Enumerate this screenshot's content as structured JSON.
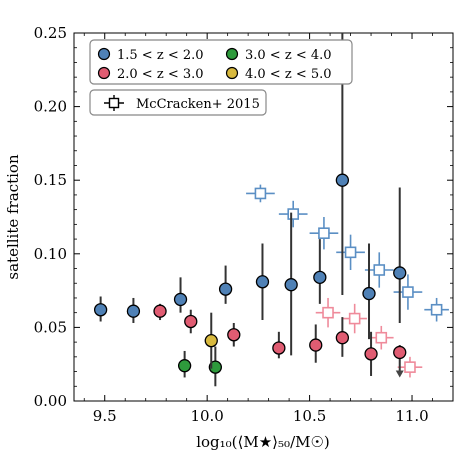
{
  "chart_data": {
    "type": "scatter",
    "xlabel": "log₁₀(⟨M★⟩₅₀/M☉)",
    "ylabel": "satellite fraction",
    "xlim": [
      9.35,
      11.2
    ],
    "ylim": [
      0.0,
      0.25
    ],
    "xticks": [
      "9.5",
      "10.0",
      "10.5",
      "11.0"
    ],
    "xtick_values": [
      9.5,
      10.0,
      10.5,
      11.0
    ],
    "yticks": [
      "0.00",
      "0.05",
      "0.10",
      "0.15",
      "0.20",
      "0.25"
    ],
    "ytick_values": [
      0.0,
      0.05,
      0.1,
      0.15,
      0.2,
      0.25
    ],
    "grid": false,
    "legend_position": "top-left",
    "series": [
      {
        "name": "1.5 < z < 2.0",
        "color": "#4f81b6",
        "marker": "circle",
        "points": [
          {
            "x": 9.48,
            "y": 0.062,
            "ylo": 0.054,
            "yhi": 0.071
          },
          {
            "x": 9.64,
            "y": 0.061,
            "ylo": 0.053,
            "yhi": 0.07
          },
          {
            "x": 9.87,
            "y": 0.069,
            "ylo": 0.06,
            "yhi": 0.084
          },
          {
            "x": 10.09,
            "y": 0.076,
            "ylo": 0.066,
            "yhi": 0.092
          },
          {
            "x": 10.27,
            "y": 0.081,
            "ylo": 0.055,
            "yhi": 0.107
          },
          {
            "x": 10.41,
            "y": 0.079,
            "ylo": 0.031,
            "yhi": 0.128
          },
          {
            "x": 10.55,
            "y": 0.084,
            "ylo": 0.066,
            "yhi": 0.11
          },
          {
            "x": 10.66,
            "y": 0.15,
            "ylo": 0.072,
            "yhi": 0.25
          },
          {
            "x": 10.79,
            "y": 0.073,
            "ylo": 0.042,
            "yhi": 0.107
          },
          {
            "x": 10.94,
            "y": 0.087,
            "ylo": 0.053,
            "yhi": 0.145
          }
        ]
      },
      {
        "name": "2.0 < z < 3.0",
        "color": "#e05c72",
        "marker": "circle",
        "points": [
          {
            "x": 9.77,
            "y": 0.061,
            "ylo": 0.055,
            "yhi": 0.066
          },
          {
            "x": 9.92,
            "y": 0.054,
            "ylo": 0.046,
            "yhi": 0.062
          },
          {
            "x": 10.13,
            "y": 0.045,
            "ylo": 0.037,
            "yhi": 0.053
          },
          {
            "x": 10.35,
            "y": 0.036,
            "ylo": 0.029,
            "yhi": 0.047
          },
          {
            "x": 10.53,
            "y": 0.038,
            "ylo": 0.026,
            "yhi": 0.052
          },
          {
            "x": 10.66,
            "y": 0.043,
            "ylo": 0.03,
            "yhi": 0.057
          },
          {
            "x": 10.8,
            "y": 0.032,
            "ylo": 0.017,
            "yhi": 0.047
          },
          {
            "x": 10.94,
            "y": 0.033,
            "ylo": 0.018,
            "yhi": 0.038,
            "upper_limit": true
          }
        ]
      },
      {
        "name": "3.0 < z < 4.0",
        "color": "#2e9a3c",
        "marker": "circle",
        "points": [
          {
            "x": 9.89,
            "y": 0.024,
            "ylo": 0.016,
            "yhi": 0.034
          },
          {
            "x": 10.04,
            "y": 0.023,
            "ylo": 0.01,
            "yhi": 0.037
          }
        ]
      },
      {
        "name": "4.0 < z < 5.0",
        "color": "#d8b93e",
        "marker": "circle",
        "points": [
          {
            "x": 10.02,
            "y": 0.041,
            "ylo": 0.022,
            "yhi": 0.06
          }
        ]
      },
      {
        "name": "McCracken+ 2015",
        "color": "#000000",
        "marker": "open-square",
        "subsets": [
          {
            "color": "#5b8fc4",
            "points": [
              {
                "x": 10.26,
                "y": 0.141,
                "xerr": 0.07,
                "yerr": 0.006
              },
              {
                "x": 10.42,
                "y": 0.127,
                "xerr": 0.07,
                "yerr": 0.009
              },
              {
                "x": 10.57,
                "y": 0.114,
                "xerr": 0.07,
                "yerr": 0.011
              },
              {
                "x": 10.7,
                "y": 0.101,
                "xerr": 0.07,
                "yerr": 0.012
              },
              {
                "x": 10.84,
                "y": 0.089,
                "xerr": 0.07,
                "yerr": 0.012
              },
              {
                "x": 10.98,
                "y": 0.074,
                "xerr": 0.07,
                "yerr": 0.012
              },
              {
                "x": 11.12,
                "y": 0.062,
                "xerr": 0.06,
                "yerr": 0.008
              }
            ]
          },
          {
            "color": "#ef8b9b",
            "points": [
              {
                "x": 10.59,
                "y": 0.06,
                "xerr": 0.06,
                "yerr": 0.01
              },
              {
                "x": 10.72,
                "y": 0.056,
                "xerr": 0.06,
                "yerr": 0.01
              },
              {
                "x": 10.85,
                "y": 0.043,
                "xerr": 0.06,
                "yerr": 0.008
              },
              {
                "x": 10.99,
                "y": 0.023,
                "xerr": 0.06,
                "yerr": 0.007
              }
            ]
          }
        ]
      }
    ]
  },
  "legend": {
    "entries": [
      {
        "label": "1.5 < z < 2.0",
        "color": "#4f81b6"
      },
      {
        "label": "3.0 < z < 4.0",
        "color": "#2e9a3c"
      },
      {
        "label": "2.0 < z < 3.0",
        "color": "#e05c72"
      },
      {
        "label": "4.0 < z < 5.0",
        "color": "#d8b93e"
      }
    ],
    "reference_label": "McCracken+ 2015"
  }
}
